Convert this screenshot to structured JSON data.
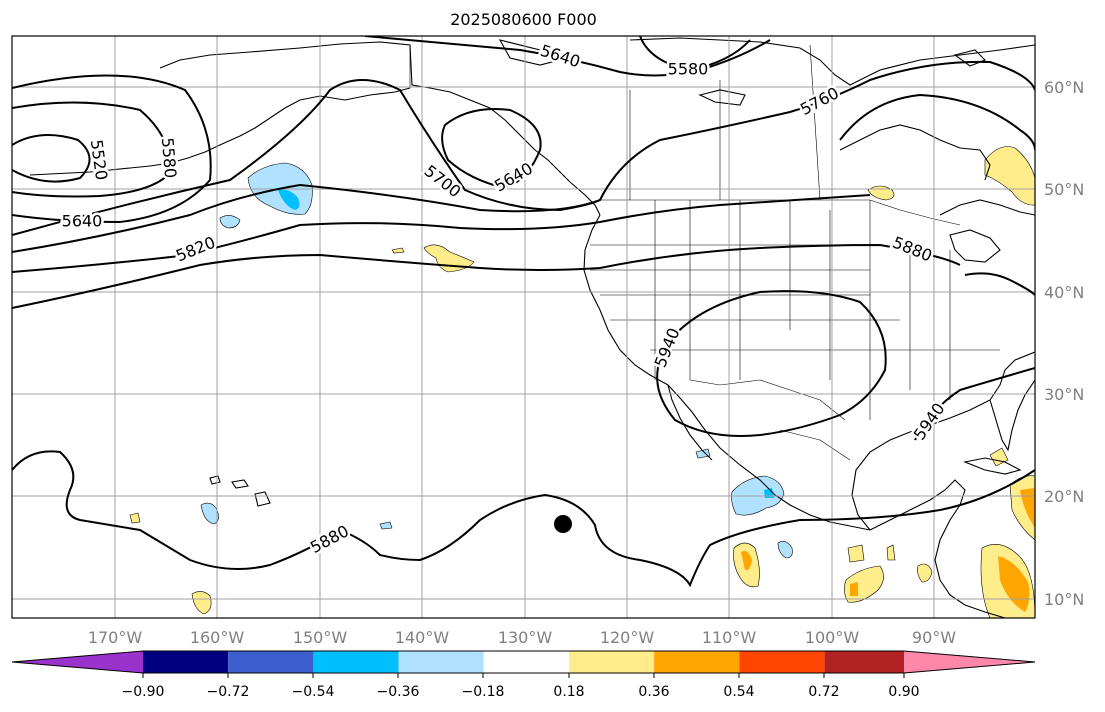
{
  "title": "2025080600 F000",
  "lat_labels": [
    "60°N",
    "50°N",
    "40°N",
    "30°N",
    "20°N",
    "10°N"
  ],
  "lon_labels": [
    "170°W",
    "160°W",
    "150°W",
    "140°W",
    "130°W",
    "120°W",
    "110°W",
    "100°W",
    "90°W"
  ],
  "contour_labels": [
    "5640",
    "5580",
    "5760",
    "5520",
    "5580",
    "5700",
    "5640",
    "5640",
    "5820",
    "5880",
    "5940",
    "5940",
    "5880"
  ],
  "colorbar": {
    "tick_labels": [
      "−0.90",
      "−0.72",
      "−0.54",
      "−0.36",
      "−0.18",
      "0.18",
      "0.36",
      "0.54",
      "0.72",
      "0.90"
    ],
    "colors": [
      "#9a33cc",
      "#000080",
      "#3a5fcd",
      "#00bfff",
      "#b0e2ff",
      "#ffffff",
      "#ffec8b",
      "#ffa500",
      "#ff4500",
      "#b22222",
      "#ff88aa"
    ]
  },
  "colors": {
    "frame": "#000000",
    "grid": "#a0a0a0",
    "contour": "#000000",
    "positive_light": "#ffec8b",
    "positive_mid": "#ffa500",
    "negative_light": "#b0e2ff",
    "negative_mid": "#00bfff"
  }
}
